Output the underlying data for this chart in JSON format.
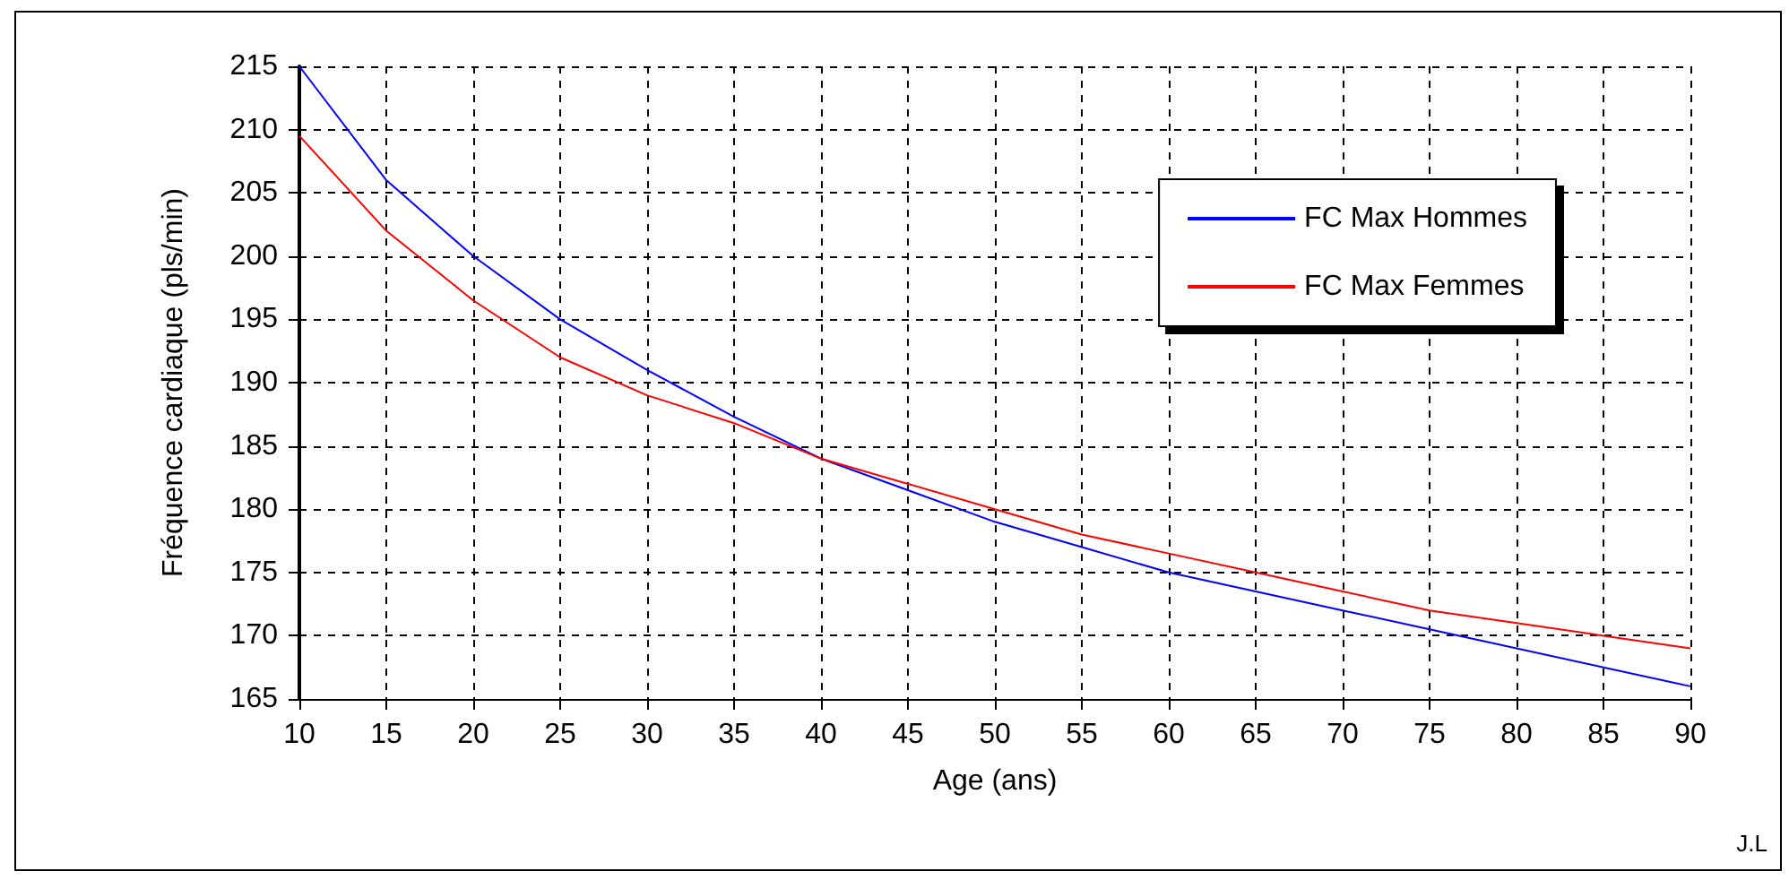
{
  "chart_data": {
    "type": "line",
    "xlabel": "Age (ans)",
    "ylabel": "Fréquence cardiaque (pls/min)",
    "x": [
      10,
      15,
      20,
      25,
      30,
      35,
      40,
      45,
      50,
      55,
      60,
      65,
      70,
      75,
      80,
      85,
      90
    ],
    "series": [
      {
        "name": "FC Max Hommes",
        "color": "#0000ff",
        "values": [
          215,
          206,
          200,
          195,
          191,
          187.3,
          184,
          181.5,
          179,
          177,
          175,
          173.5,
          172,
          170.5,
          169,
          167.5,
          166
        ]
      },
      {
        "name": "FC Max Femmes",
        "color": "#ff0000",
        "values": [
          209.5,
          202,
          196.5,
          192,
          189,
          186.8,
          184,
          182,
          180,
          178,
          176.5,
          175,
          173.5,
          172,
          171,
          170,
          169
        ]
      }
    ],
    "xlim": [
      10,
      90
    ],
    "xticks": [
      10,
      15,
      20,
      25,
      30,
      35,
      40,
      45,
      50,
      55,
      60,
      65,
      70,
      75,
      80,
      85,
      90
    ],
    "ylim": [
      165,
      215
    ],
    "yticks": [
      165,
      170,
      175,
      180,
      185,
      190,
      195,
      200,
      205,
      210,
      215
    ],
    "grid": true,
    "legend": "top right",
    "marker": "none",
    "line_style": "solid",
    "annotations": [
      "J.L"
    ]
  }
}
